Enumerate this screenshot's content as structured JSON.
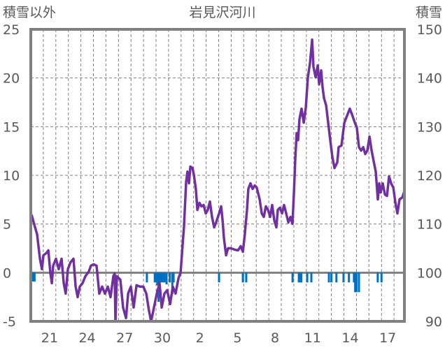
{
  "chart_data": {
    "type": "line",
    "title": "岩見沢河川",
    "ylabel_left": "積雪以外",
    "ylabel_right": "積雪",
    "ylim_left": [
      -5,
      25
    ],
    "ylim_right": [
      90,
      150
    ],
    "yticks_left": [
      "25",
      "20",
      "15",
      "10",
      "5",
      "0",
      "-5"
    ],
    "yticks_right": [
      "150",
      "140",
      "130",
      "120",
      "110",
      "100",
      "90"
    ],
    "xlim_days": [
      0,
      29.83
    ],
    "x_unit": "days since start of day 20",
    "xtick_labels": [
      {
        "day": 1,
        "label": "21"
      },
      {
        "day": 4,
        "label": "24"
      },
      {
        "day": 7,
        "label": "27"
      },
      {
        "day": 10,
        "label": "30"
      },
      {
        "day": 13,
        "label": "2"
      },
      {
        "day": 16,
        "label": "5"
      },
      {
        "day": 19,
        "label": "8"
      },
      {
        "day": 22,
        "label": "11"
      },
      {
        "day": 25,
        "label": "14"
      },
      {
        "day": 28,
        "label": "17"
      }
    ],
    "grid": true,
    "colors": {
      "line": "#7030A0",
      "bars": "#0070C0",
      "frame": "#808080",
      "grid": "#808080"
    },
    "series": [
      {
        "name": "line",
        "points": [
          [
            0.06,
            5.95
          ],
          [
            0.34,
            4.66
          ],
          [
            0.5,
            3.94
          ],
          [
            0.73,
            1.43
          ],
          [
            0.89,
            0.36
          ],
          [
            1.01,
            1.79
          ],
          [
            1.23,
            2.0
          ],
          [
            1.4,
            2.29
          ],
          [
            1.56,
            0
          ],
          [
            1.68,
            -1.08
          ],
          [
            1.79,
            0.72
          ],
          [
            2.01,
            1.43
          ],
          [
            2.23,
            0.36
          ],
          [
            2.46,
            1.43
          ],
          [
            2.63,
            -1.08
          ],
          [
            2.79,
            -2.15
          ],
          [
            2.96,
            0.36
          ],
          [
            3.18,
            1.08
          ],
          [
            3.41,
            1.43
          ],
          [
            3.58,
            -1.43
          ],
          [
            3.74,
            -2.51
          ],
          [
            3.91,
            -1.43
          ],
          [
            4.13,
            -1.08
          ],
          [
            4.36,
            -0.36
          ],
          [
            4.64,
            0.14
          ],
          [
            4.8,
            0.72
          ],
          [
            5.03,
            0.86
          ],
          [
            5.25,
            0.72
          ],
          [
            5.47,
            -2.15
          ],
          [
            5.7,
            -1.43
          ],
          [
            5.92,
            -2.15
          ],
          [
            6.15,
            -1.43
          ],
          [
            6.37,
            -2.51
          ],
          [
            6.59,
            -0.36
          ],
          [
            6.7,
            -0.1
          ],
          [
            6.76,
            -5.0
          ],
          [
            6.87,
            -0.36
          ],
          [
            7.15,
            -0.72
          ],
          [
            7.37,
            -3.58
          ],
          [
            7.6,
            -4.66
          ],
          [
            7.77,
            -2.15
          ],
          [
            7.99,
            -1.43
          ],
          [
            8.21,
            -3.58
          ],
          [
            8.44,
            -1.29
          ],
          [
            8.72,
            -1.43
          ],
          [
            8.99,
            -1.43
          ],
          [
            9.22,
            -2.15
          ],
          [
            9.44,
            -3.94
          ],
          [
            9.61,
            -5.0
          ],
          [
            9.83,
            -3.58
          ],
          [
            10.06,
            -2.15
          ],
          [
            10.28,
            -1.08
          ],
          [
            10.45,
            -3.58
          ],
          [
            10.67,
            -2.15
          ],
          [
            10.89,
            -1.79
          ],
          [
            11.12,
            -3.23
          ],
          [
            11.34,
            -1.43
          ],
          [
            11.56,
            -2.15
          ],
          [
            11.79,
            -0.57
          ],
          [
            11.96,
            0
          ],
          [
            12.12,
            2.87
          ],
          [
            12.23,
            4.66
          ],
          [
            12.4,
            9.32
          ],
          [
            12.51,
            10.39
          ],
          [
            12.63,
            9.18
          ],
          [
            12.74,
            10.9
          ],
          [
            12.91,
            10.75
          ],
          [
            13.02,
            10.04
          ],
          [
            13.18,
            8.6
          ],
          [
            13.3,
            6.45
          ],
          [
            13.46,
            7.17
          ],
          [
            13.63,
            6.81
          ],
          [
            13.8,
            6.95
          ],
          [
            13.97,
            6.09
          ],
          [
            14.13,
            6.45
          ],
          [
            14.3,
            7.31
          ],
          [
            14.47,
            5.73
          ],
          [
            14.64,
            4.66
          ],
          [
            14.8,
            5.16
          ],
          [
            15.03,
            6.09
          ],
          [
            15.2,
            6.81
          ],
          [
            15.31,
            5.38
          ],
          [
            15.42,
            3.58
          ],
          [
            15.59,
            1.79
          ],
          [
            15.75,
            2.51
          ],
          [
            15.98,
            2.51
          ],
          [
            16.26,
            2.37
          ],
          [
            16.54,
            2.29
          ],
          [
            16.76,
            2.72
          ],
          [
            16.93,
            2.15
          ],
          [
            17.09,
            3.94
          ],
          [
            17.26,
            6.45
          ],
          [
            17.37,
            8.6
          ],
          [
            17.54,
            9.18
          ],
          [
            17.71,
            8.6
          ],
          [
            17.88,
            8.96
          ],
          [
            18.04,
            8.75
          ],
          [
            18.27,
            7.53
          ],
          [
            18.44,
            6.09
          ],
          [
            18.6,
            5.73
          ],
          [
            18.77,
            6.81
          ],
          [
            18.94,
            6.45
          ],
          [
            19.11,
            5.73
          ],
          [
            19.27,
            6.95
          ],
          [
            19.44,
            5.38
          ],
          [
            19.61,
            4.66
          ],
          [
            19.72,
            6.45
          ],
          [
            19.89,
            6.67
          ],
          [
            20.06,
            6.09
          ],
          [
            20.22,
            6.95
          ],
          [
            20.39,
            6.09
          ],
          [
            20.56,
            5.16
          ],
          [
            20.73,
            5.73
          ],
          [
            20.89,
            5.02
          ],
          [
            21.01,
            8.24
          ],
          [
            21.12,
            11.83
          ],
          [
            21.23,
            14.34
          ],
          [
            21.34,
            13.62
          ],
          [
            21.45,
            15.77
          ],
          [
            21.62,
            16.85
          ],
          [
            21.79,
            15.41
          ],
          [
            21.96,
            16.99
          ],
          [
            22.12,
            20.07
          ],
          [
            22.29,
            21.51
          ],
          [
            22.46,
            23.94
          ],
          [
            22.57,
            21.15
          ],
          [
            22.74,
            20.07
          ],
          [
            22.91,
            21.29
          ],
          [
            23.02,
            19.35
          ],
          [
            23.18,
            20.79
          ],
          [
            23.3,
            19.0
          ],
          [
            23.41,
            17.92
          ],
          [
            23.58,
            17.2
          ],
          [
            23.74,
            15.41
          ],
          [
            23.91,
            13.62
          ],
          [
            24.08,
            11.83
          ],
          [
            24.25,
            10.75
          ],
          [
            24.47,
            11.33
          ],
          [
            24.58,
            12.9
          ],
          [
            24.8,
            13.05
          ],
          [
            25.03,
            15.41
          ],
          [
            25.25,
            16.13
          ],
          [
            25.47,
            16.85
          ],
          [
            25.64,
            16.27
          ],
          [
            25.87,
            15.41
          ],
          [
            26.03,
            14.91
          ],
          [
            26.2,
            12.9
          ],
          [
            26.37,
            12.54
          ],
          [
            26.54,
            12.9
          ],
          [
            26.7,
            12.19
          ],
          [
            26.87,
            12.54
          ],
          [
            27.04,
            13.98
          ],
          [
            27.21,
            12.54
          ],
          [
            27.37,
            11.47
          ],
          [
            27.54,
            10.39
          ],
          [
            27.71,
            7.53
          ],
          [
            27.82,
            9.18
          ],
          [
            27.93,
            8.24
          ],
          [
            28.1,
            9.18
          ],
          [
            28.27,
            8.03
          ],
          [
            28.44,
            7.89
          ],
          [
            28.6,
            9.89
          ],
          [
            28.77,
            9.18
          ],
          [
            28.94,
            8.75
          ],
          [
            29.11,
            7.17
          ],
          [
            29.27,
            6.09
          ],
          [
            29.44,
            7.53
          ],
          [
            29.66,
            7.74
          ],
          [
            29.83,
            8.39
          ]
        ]
      },
      {
        "name": "bars",
        "points": [
          [
            0.1,
            -0.9
          ],
          [
            0.2,
            -0.9
          ],
          [
            0.3,
            -0.9
          ],
          [
            9.27,
            -1
          ],
          [
            9.9,
            -1
          ],
          [
            10.0,
            -1
          ],
          [
            10.1,
            -1.3
          ],
          [
            10.2,
            -3
          ],
          [
            10.34,
            -1
          ],
          [
            10.5,
            -1
          ],
          [
            10.67,
            -1
          ],
          [
            10.84,
            -1.2
          ],
          [
            11.1,
            -1
          ],
          [
            11.3,
            -2.2
          ],
          [
            11.4,
            -1
          ],
          [
            15.03,
            -1
          ],
          [
            16.93,
            -1
          ],
          [
            17.2,
            -1
          ],
          [
            20.9,
            -1
          ],
          [
            21.4,
            -1
          ],
          [
            21.5,
            -1
          ],
          [
            21.6,
            -1
          ],
          [
            22.07,
            -1
          ],
          [
            22.4,
            -1
          ],
          [
            23.8,
            -1
          ],
          [
            24.0,
            -1
          ],
          [
            24.4,
            -1
          ],
          [
            24.97,
            -1
          ],
          [
            25.4,
            -1
          ],
          [
            25.8,
            -1
          ],
          [
            25.9,
            -2
          ],
          [
            26.0,
            -2
          ],
          [
            26.2,
            -2
          ],
          [
            27.7,
            -1
          ],
          [
            28.0,
            -1
          ],
          [
            29.8,
            -1
          ]
        ]
      }
    ]
  }
}
